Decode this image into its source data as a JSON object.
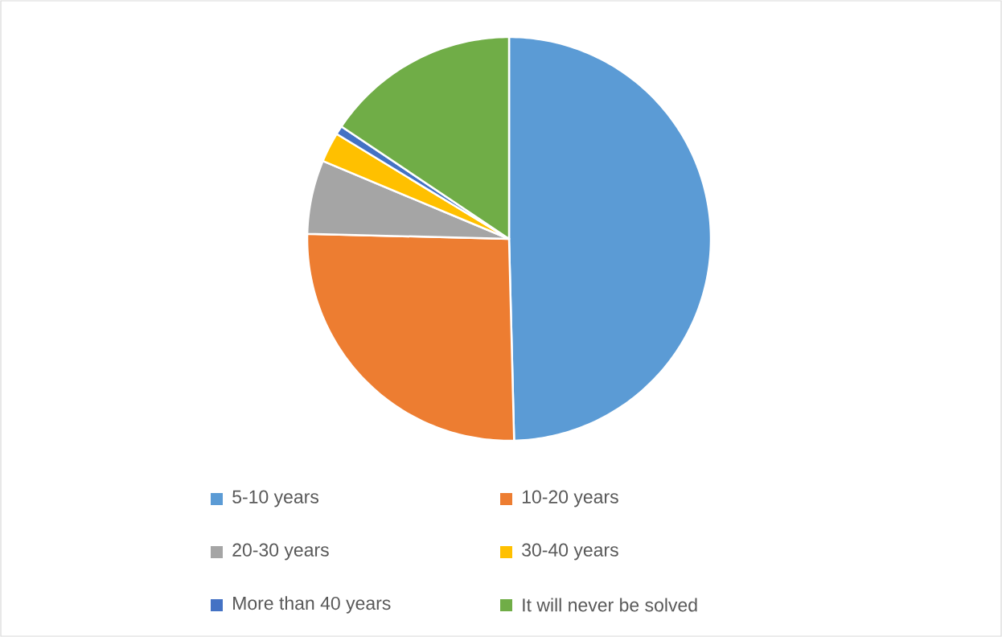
{
  "chart_data": {
    "type": "pie",
    "categories": [
      "5-10 years",
      "10-20 years",
      "20-30 years",
      "30-40 years",
      "More than 40 years",
      "It will  never be solved"
    ],
    "values": [
      49.6,
      25.8,
      5.9,
      2.4,
      0.7,
      15.6
    ],
    "colors": [
      "#5b9bd5",
      "#ed7d31",
      "#a5a5a5",
      "#ffc000",
      "#4472c4",
      "#70ad47"
    ],
    "legend": "bottom"
  }
}
